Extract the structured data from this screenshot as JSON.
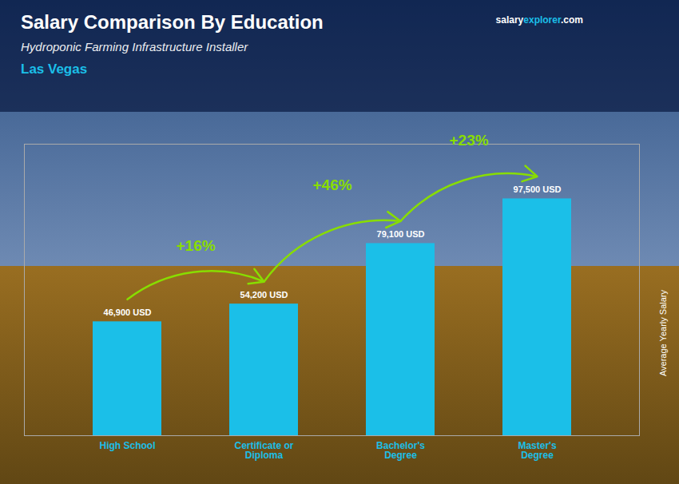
{
  "chart_data": {
    "type": "bar",
    "title": "Salary Comparison By Education",
    "subtitle": "Hydroponic Farming Infrastructure Installer",
    "ylabel": "Average Yearly Salary",
    "categories": [
      "High School",
      "Certificate or\nDiploma",
      "Bachelor's\nDegree",
      "Master's\nDegree"
    ],
    "values": [
      46900,
      54200,
      79100,
      97500
    ],
    "value_labels": [
      "46,900 USD",
      "54,200 USD",
      "79,100 USD",
      "97,500 USD"
    ],
    "data_labels": true,
    "color": "#1bbfe8",
    "ylim": [
      0,
      120000
    ],
    "tick_labels": "x",
    "grid": false,
    "annotations": [
      {
        "text": "Las Vegas",
        "color": "#1bbfe8"
      },
      {
        "text": "salary",
        "color": "#ffffff"
      },
      {
        "text": "explorer",
        "color": "#1bbfe8"
      },
      {
        "text": ".com",
        "color": "#ffffff"
      },
      {
        "text": "+16%",
        "from": "High School",
        "to": "Certificate or\nDiploma",
        "color": "#88dd00"
      },
      {
        "text": "+46%",
        "from": "Certificate or\nDiploma",
        "to": "Bachelor's\nDegree",
        "color": "#88dd00"
      },
      {
        "text": "+23%",
        "from": "Bachelor's\nDegree",
        "to": "Master's\nDegree",
        "color": "#88dd00"
      }
    ]
  }
}
